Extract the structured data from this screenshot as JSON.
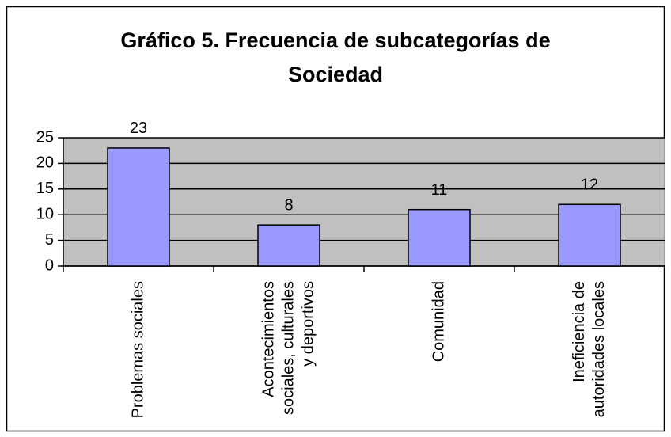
{
  "chart_data": {
    "type": "bar",
    "title": "Gráfico 5. Frecuencia de subcategorías de Sociedad",
    "categories": [
      "Problemas sociales",
      "Acontecimientos sociales, culturales y deportivos",
      "Comunidad",
      "Ineficiencia de autoridades locales"
    ],
    "values": [
      23,
      8,
      11,
      12
    ],
    "color": "#9999ff",
    "ylim": [
      0,
      25
    ],
    "yticks": [
      0,
      5,
      10,
      15,
      20,
      25
    ],
    "grid": true
  }
}
